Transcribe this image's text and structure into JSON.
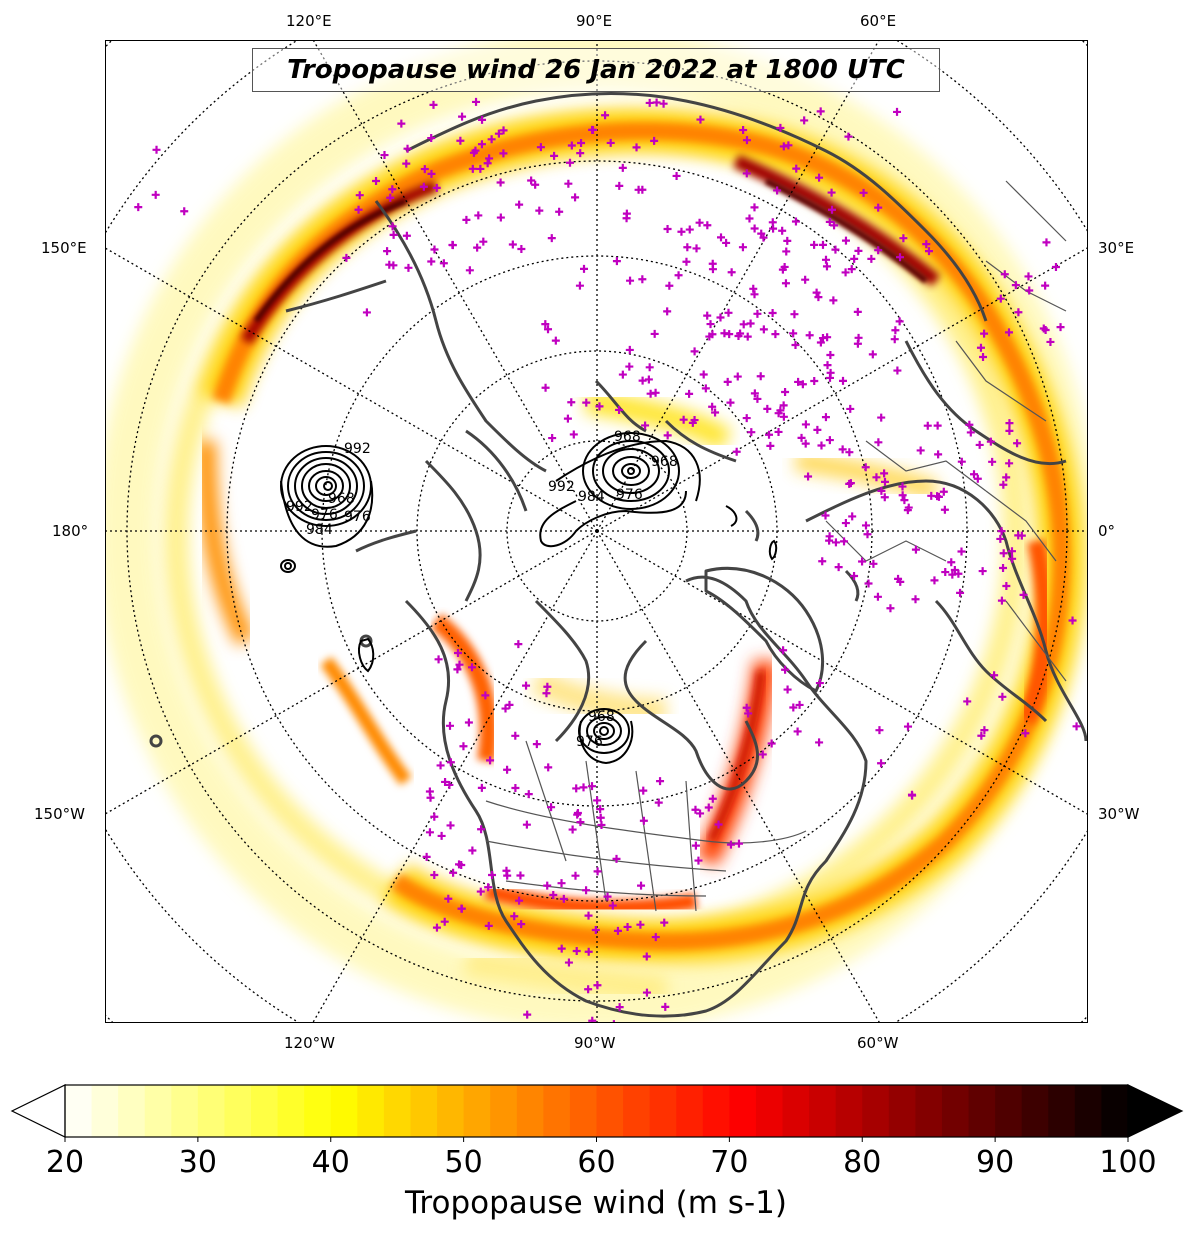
{
  "title": "Tropopause wind 26 Jan 2022 at 1800 UTC",
  "colors": {
    "coastline": "#444444",
    "station_marker": "#c000c0",
    "isobar": "#000000",
    "grid": "#000000"
  },
  "longitude_labels": {
    "top": [
      "120°E",
      "90°E",
      "60°E"
    ],
    "bottom": [
      "120°W",
      "90°W",
      "60°W"
    ],
    "left": [
      "150°E",
      "180°",
      "150°W"
    ],
    "right": [
      "30°E",
      "0°",
      "30°W"
    ]
  },
  "isobar_labels": [
    "992",
    "968",
    "976",
    "984",
    "992",
    "976",
    "968",
    "968",
    "984",
    "976",
    "992",
    "968",
    "976"
  ],
  "colorbar": {
    "label": "Tropopause wind (m s-1)",
    "ticks": [
      "20",
      "30",
      "40",
      "50",
      "60",
      "70",
      "80",
      "90",
      "100"
    ],
    "min": 20,
    "max": 100,
    "extend": "both",
    "colormap": "hot_r"
  }
}
